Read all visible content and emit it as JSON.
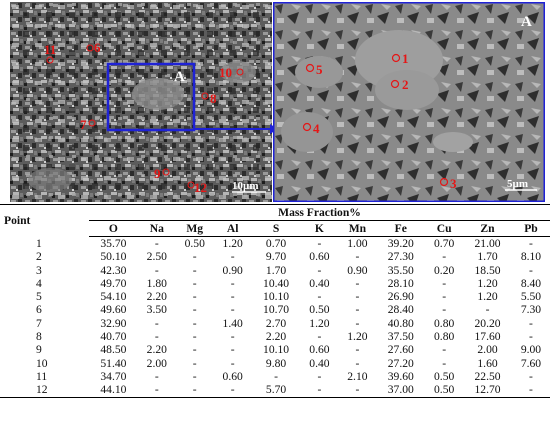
{
  "figure": {
    "panel_label": "A",
    "left_scale": "10µm",
    "right_scale": "5µm",
    "colors": {
      "marker": "#e51616",
      "inset_box": "#1f22d6",
      "arrow": "#1f22d6"
    },
    "left_points": [
      "11",
      "6",
      "10",
      "8",
      "7",
      "9",
      "12"
    ],
    "right_points": [
      "1",
      "2",
      "5",
      "4",
      "3"
    ]
  },
  "table": {
    "point_header": "Point",
    "group_header": "Mass Fraction%",
    "columns": [
      "O",
      "Na",
      "Mg",
      "Al",
      "S",
      "K",
      "Mn",
      "Fe",
      "Cu",
      "Zn",
      "Pb"
    ],
    "rows": [
      [
        "1",
        "35.70",
        "-",
        "0.50",
        "1.20",
        "0.70",
        "-",
        "1.00",
        "39.20",
        "0.70",
        "21.00",
        "-"
      ],
      [
        "2",
        "50.10",
        "2.50",
        "-",
        "-",
        "9.70",
        "0.60",
        "-",
        "27.30",
        "-",
        "1.70",
        "8.10"
      ],
      [
        "3",
        "42.30",
        "-",
        "-",
        "0.90",
        "1.70",
        "-",
        "0.90",
        "35.50",
        "0.20",
        "18.50",
        "-"
      ],
      [
        "4",
        "49.70",
        "1.80",
        "-",
        "-",
        "10.40",
        "0.40",
        "-",
        "28.10",
        "-",
        "1.20",
        "8.40"
      ],
      [
        "5",
        "54.10",
        "2.20",
        "-",
        "-",
        "10.10",
        "-",
        "-",
        "26.90",
        "-",
        "1.20",
        "5.50"
      ],
      [
        "6",
        "49.60",
        "3.50",
        "-",
        "-",
        "10.70",
        "0.50",
        "-",
        "28.40",
        "-",
        "-",
        "7.30"
      ],
      [
        "7",
        "32.90",
        "-",
        "-",
        "1.40",
        "2.70",
        "1.20",
        "-",
        "40.80",
        "0.80",
        "20.20",
        "-"
      ],
      [
        "8",
        "40.70",
        "-",
        "-",
        "-",
        "2.20",
        "-",
        "1.20",
        "37.50",
        "0.80",
        "17.60",
        "-"
      ],
      [
        "9",
        "48.50",
        "2.20",
        "-",
        "-",
        "10.10",
        "0.60",
        "-",
        "27.60",
        "-",
        "2.00",
        "9.00"
      ],
      [
        "10",
        "51.40",
        "2.00",
        "-",
        "-",
        "9.80",
        "0.40",
        "-",
        "27.20",
        "-",
        "1.60",
        "7.60"
      ],
      [
        "11",
        "34.70",
        "-",
        "-",
        "0.60",
        "-",
        "-",
        "2.10",
        "39.60",
        "0.50",
        "22.50",
        "-"
      ],
      [
        "12",
        "44.10",
        "-",
        "-",
        "-",
        "5.70",
        "-",
        "-",
        "37.00",
        "0.50",
        "12.70",
        "-"
      ]
    ]
  }
}
